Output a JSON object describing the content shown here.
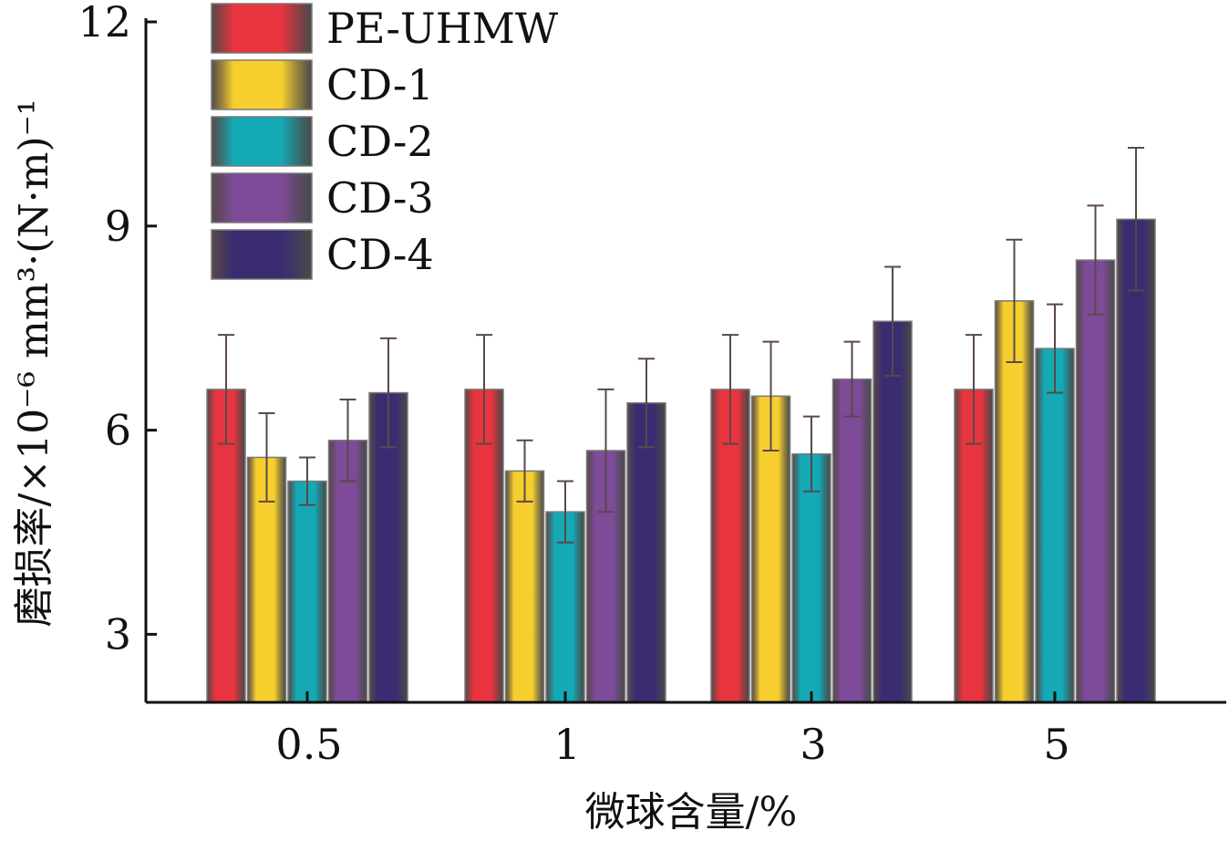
{
  "chart_data": {
    "type": "bar",
    "title": "",
    "xlabel": "微球含量/%",
    "ylabel": "磨损率/×10⁻⁶ mm³·(N·m)⁻¹",
    "categories": [
      "0.5",
      "1",
      "3",
      "5"
    ],
    "ylim": [
      2,
      12
    ],
    "yticks": [
      3,
      6,
      9,
      12
    ],
    "legend_position": "top-left",
    "grid": false,
    "error_bars": true,
    "series": [
      {
        "name": "PE-UHMW",
        "color": "#e8343e",
        "values": [
          6.6,
          6.6,
          6.6,
          6.6
        ],
        "errors": [
          0.8,
          0.8,
          0.8,
          0.8
        ]
      },
      {
        "name": "CD-1",
        "color": "#f6cf2e",
        "values": [
          5.6,
          5.4,
          6.5,
          7.9
        ],
        "errors": [
          0.65,
          0.45,
          0.8,
          0.9
        ]
      },
      {
        "name": "CD-2",
        "color": "#14a9b5",
        "values": [
          5.25,
          4.8,
          5.65,
          7.2
        ],
        "errors": [
          0.35,
          0.45,
          0.55,
          0.65
        ]
      },
      {
        "name": "CD-3",
        "color": "#7d4b98",
        "values": [
          5.85,
          5.7,
          6.75,
          8.5
        ],
        "errors": [
          0.6,
          0.9,
          0.55,
          0.8
        ]
      },
      {
        "name": "CD-4",
        "color": "#3b2c72",
        "values": [
          6.55,
          6.4,
          7.6,
          9.1
        ],
        "errors": [
          0.8,
          0.65,
          0.8,
          1.05
        ]
      }
    ]
  }
}
